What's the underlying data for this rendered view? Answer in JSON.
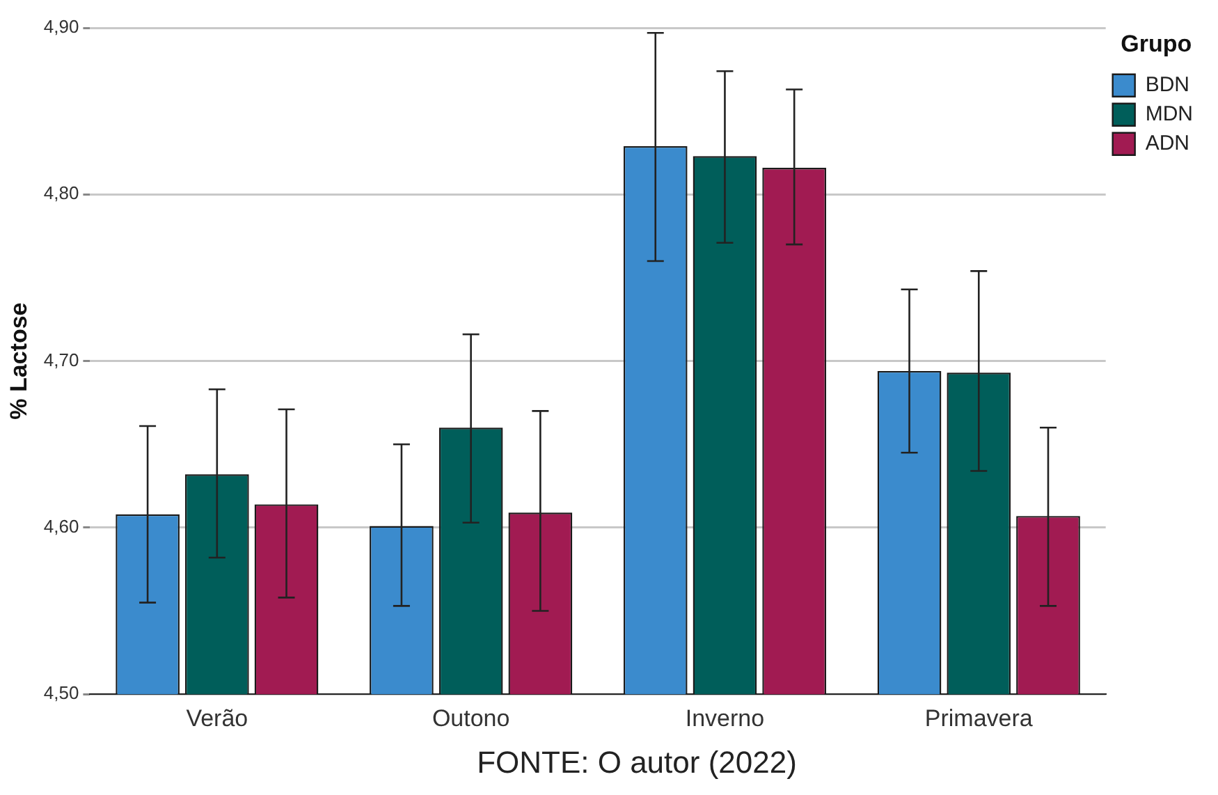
{
  "chart_data": {
    "type": "bar",
    "ylabel": "% Lactose",
    "legend_title": "Grupo",
    "legend": "top right",
    "grid": "y",
    "categories": [
      "Verão",
      "Outono",
      "Inverno",
      "Primavera"
    ],
    "ylim": [
      4.5,
      4.9
    ],
    "yticks": [
      {
        "value": 4.5,
        "label": "4,50"
      },
      {
        "value": 4.6,
        "label": "4,60"
      },
      {
        "value": 4.7,
        "label": "4,70"
      },
      {
        "value": 4.8,
        "label": "4,80"
      },
      {
        "value": 4.9,
        "label": "4,90"
      }
    ],
    "series": [
      {
        "name": "BDN",
        "color": "#3b8bcd",
        "values": [
          4.608,
          4.601,
          4.829,
          4.694
        ],
        "errors": [
          [
            4.555,
            4.661
          ],
          [
            4.553,
            4.65
          ],
          [
            4.76,
            4.897
          ],
          [
            4.645,
            4.743
          ]
        ]
      },
      {
        "name": "MDN",
        "color": "#005e5a",
        "values": [
          4.632,
          4.66,
          4.823,
          4.693
        ],
        "errors": [
          [
            4.582,
            4.683
          ],
          [
            4.603,
            4.716
          ],
          [
            4.771,
            4.874
          ],
          [
            4.634,
            4.754
          ]
        ]
      },
      {
        "name": "ADN",
        "color": "#a11b52",
        "values": [
          4.614,
          4.609,
          4.816,
          4.607
        ],
        "errors": [
          [
            4.558,
            4.671
          ],
          [
            4.55,
            4.67
          ],
          [
            4.77,
            4.863
          ],
          [
            4.553,
            4.66
          ]
        ]
      }
    ],
    "annotations": [
      "FONTE: O autor (2022)"
    ]
  }
}
